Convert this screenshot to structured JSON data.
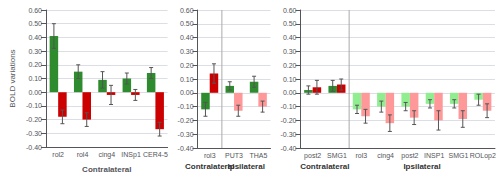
{
  "chart_data": [
    {
      "type": "bar",
      "ylabel": "BOLD variations",
      "xlabel": "Contralateral",
      "categories": [
        "rol2",
        "rol4",
        "cing4",
        "INSp1",
        "CER4-5"
      ],
      "series": [
        {
          "colors": [
            "#2e8b2e",
            "#2e8b2e",
            "#2e8b2e",
            "#2e8b2e",
            "#2e8b2e"
          ],
          "values": [
            0.41,
            0.15,
            0.09,
            0.1,
            0.14
          ],
          "errors": [
            0.09,
            0.05,
            0.06,
            0.04,
            0.04
          ]
        },
        {
          "colors": [
            "#cc0000",
            "#cc0000",
            "#cc0000",
            "#cc0000",
            "#cc0000"
          ],
          "values": [
            -0.18,
            -0.2,
            -0.02,
            -0.02,
            -0.27
          ],
          "errors": [
            0.05,
            0.05,
            0.07,
            0.04,
            0.05
          ]
        }
      ],
      "ylim": [
        -0.4,
        0.6
      ],
      "yticks": [
        {
          "value": -0.4,
          "label": "-0.40"
        },
        {
          "value": -0.3,
          "label": "-0.30"
        },
        {
          "value": -0.2,
          "label": "-0.20"
        },
        {
          "value": -0.1,
          "label": "-0.10"
        },
        {
          "value": 0.0,
          "label": "0.00"
        },
        {
          "value": 0.1,
          "label": "0.10"
        },
        {
          "value": 0.2,
          "label": "0.20"
        },
        {
          "value": 0.3,
          "label": "0.30"
        },
        {
          "value": 0.4,
          "label": "0.40"
        },
        {
          "value": 0.5,
          "label": "0.50"
        },
        {
          "value": 0.6,
          "label": "0.60"
        }
      ],
      "grid": true
    },
    {
      "type": "bar",
      "categories": [
        "rol3",
        "PUT3",
        "THA5"
      ],
      "groups": [
        {
          "label": "Contralateral",
          "categories": [
            "rol3"
          ]
        },
        {
          "label": "Ipsilateral",
          "categories": [
            "PUT3",
            "THA5"
          ]
        }
      ],
      "series": [
        {
          "colors": [
            "#2e8b2e",
            "#2e8b2e",
            "#2e8b2e"
          ],
          "values": [
            -0.12,
            0.05,
            0.08
          ],
          "errors": [
            0.05,
            0.03,
            0.04
          ]
        },
        {
          "colors": [
            "#cc0000",
            "#ff9999",
            "#ff9999"
          ],
          "values": [
            0.14,
            -0.13,
            -0.1
          ],
          "errors": [
            0.07,
            0.04,
            0.04
          ]
        }
      ],
      "ylim": [
        -0.4,
        0.6
      ],
      "yticks": [
        {
          "value": -0.4,
          "label": "-0.40"
        },
        {
          "value": -0.3,
          "label": "-0.30"
        },
        {
          "value": -0.2,
          "label": "-0.20"
        },
        {
          "value": -0.1,
          "label": "-0.10"
        },
        {
          "value": 0.0,
          "label": "0.00"
        },
        {
          "value": 0.1,
          "label": "0.10"
        },
        {
          "value": 0.2,
          "label": "0.20"
        },
        {
          "value": 0.3,
          "label": "0.30"
        },
        {
          "value": 0.4,
          "label": "0.40"
        },
        {
          "value": 0.5,
          "label": "0.50"
        },
        {
          "value": 0.6,
          "label": "0.60"
        }
      ],
      "grid": true
    },
    {
      "type": "bar",
      "categories": [
        "post2",
        "SMG1",
        "rol3",
        "cing4",
        "post2",
        "INSP1",
        "SMG1",
        "ROLop2"
      ],
      "groups": [
        {
          "label": "Contralateral",
          "categories": [
            "post2",
            "SMG1"
          ]
        },
        {
          "label": "Ipsilateral",
          "categories": [
            "rol3",
            "cing4",
            "post2",
            "INSP1",
            "SMG1",
            "ROLop2"
          ]
        }
      ],
      "series": [
        {
          "colors": [
            "#2e8b2e",
            "#2e8b2e",
            "#90ee90",
            "#90ee90",
            "#90ee90",
            "#90ee90",
            "#90ee90",
            "#90ee90"
          ],
          "values": [
            0.02,
            0.05,
            -0.12,
            -0.1,
            -0.1,
            -0.08,
            -0.08,
            -0.05
          ],
          "errors": [
            0.03,
            0.04,
            0.03,
            0.04,
            0.03,
            0.03,
            0.03,
            0.04
          ]
        },
        {
          "colors": [
            "#cc0000",
            "#cc0000",
            "#ff9999",
            "#ff9999",
            "#ff9999",
            "#ff9999",
            "#ff9999",
            "#ff9999"
          ],
          "values": [
            0.04,
            0.06,
            -0.17,
            -0.22,
            -0.18,
            -0.2,
            -0.19,
            -0.13
          ],
          "errors": [
            0.05,
            0.04,
            0.05,
            0.06,
            0.05,
            0.07,
            0.06,
            0.05
          ]
        }
      ],
      "ylim": [
        -0.4,
        0.6
      ],
      "yticks": [
        {
          "value": -0.4,
          "label": "-0.40"
        },
        {
          "value": -0.3,
          "label": "-0.30"
        },
        {
          "value": -0.2,
          "label": "-0.20"
        },
        {
          "value": -0.1,
          "label": "-0.10"
        },
        {
          "value": 0.0,
          "label": "0.00"
        },
        {
          "value": 0.1,
          "label": "0.10"
        },
        {
          "value": 0.2,
          "label": "0.20"
        },
        {
          "value": 0.3,
          "label": "0.30"
        },
        {
          "value": 0.4,
          "label": "0.40"
        },
        {
          "value": 0.5,
          "label": "0.50"
        },
        {
          "value": 0.6,
          "label": "0.60"
        }
      ],
      "grid": true
    }
  ]
}
